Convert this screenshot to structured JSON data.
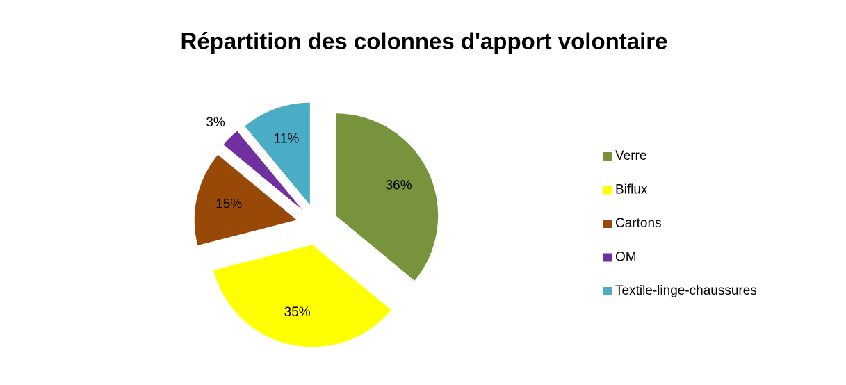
{
  "chart_data": {
    "type": "pie",
    "title": "Répartition des colonnes d'apport volontaire",
    "categories": [
      "Verre",
      "Biflux",
      "Cartons",
      "OM",
      "Textile-linge-chaussures"
    ],
    "values": [
      36,
      35,
      15,
      3,
      11
    ],
    "value_labels": [
      "36%",
      "35%",
      "15%",
      "3%",
      "11%"
    ],
    "colors": [
      "#77933c",
      "#ffff00",
      "#984807",
      "#7030a0",
      "#4bacc6"
    ],
    "legend": "right"
  }
}
